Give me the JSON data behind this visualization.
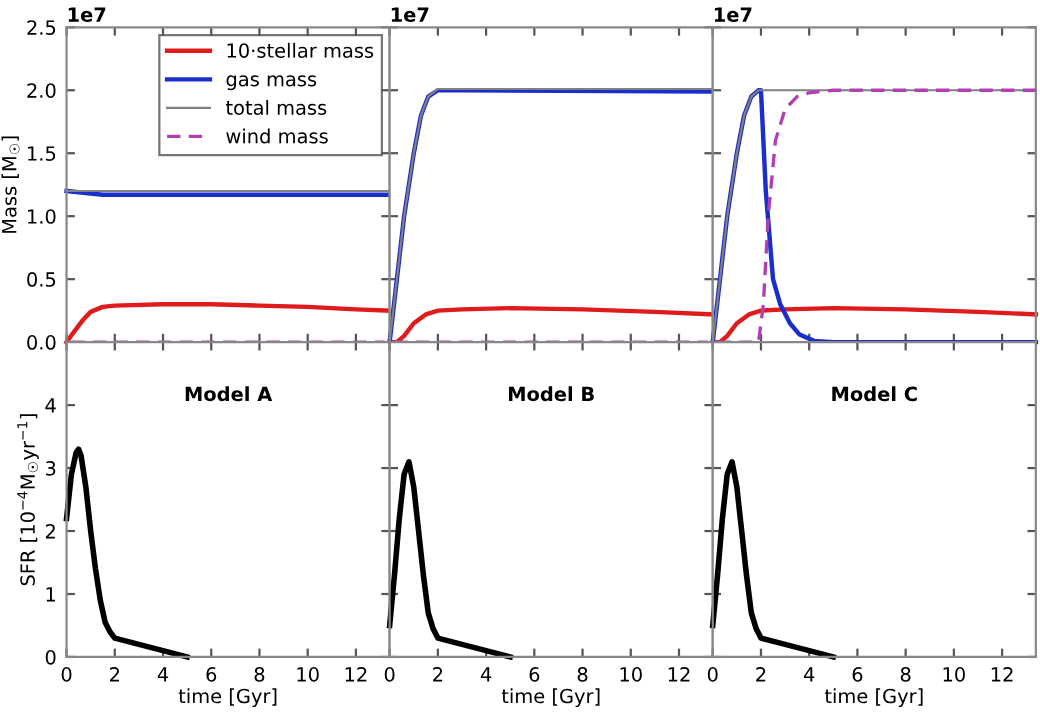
{
  "chart_data": [
    {
      "type": "line",
      "ylabel": "Mass [M$_{☉}$]",
      "annotations": [
        "1e7"
      ],
      "legend": "top right",
      "tick_labels": "y",
      "xlim": [
        0,
        13.4
      ],
      "ylim": [
        0,
        2.5
      ],
      "xticks": [
        0,
        2,
        4,
        6,
        8,
        10,
        12
      ],
      "yticks": [
        {
          "value": 0,
          "label": "0.0"
        },
        {
          "value": 0.5,
          "label": "0.5"
        },
        {
          "value": 1,
          "label": "1.0"
        },
        {
          "value": 1.5,
          "label": "1.5"
        },
        {
          "value": 2,
          "label": "2.0"
        },
        {
          "value": 2.5,
          "label": "2.5"
        }
      ],
      "series": [
        {
          "name": "10·stellar mass",
          "color": "#e01b1b",
          "line_style": "solid",
          "x": [
            0,
            0.3,
            0.7,
            1,
            1.5,
            2,
            4,
            6,
            8,
            10,
            12,
            13.4
          ],
          "values": [
            0,
            0.08,
            0.18,
            0.24,
            0.28,
            0.29,
            0.3,
            0.3,
            0.29,
            0.28,
            0.26,
            0.25
          ]
        },
        {
          "name": "gas mass",
          "color": "#1a2ecc",
          "line_style": "solid",
          "x": [
            0,
            0.5,
            1,
            1.5,
            2,
            13.4
          ],
          "values": [
            1.2,
            1.19,
            1.18,
            1.17,
            1.17,
            1.17
          ]
        },
        {
          "name": "total mass",
          "color": "#808080",
          "line_style": "solid",
          "x": [
            0,
            13.4
          ],
          "values": [
            1.2,
            1.2
          ]
        },
        {
          "name": "wind mass",
          "color": "#b040b0",
          "line_style": "dashed",
          "x": [
            0.2,
            13.2
          ],
          "values": [
            0,
            0
          ]
        }
      ]
    },
    {
      "type": "line",
      "annotations": [
        "1e7"
      ],
      "tick_labels": false,
      "xlim": [
        0,
        13.4
      ],
      "ylim": [
        0,
        2.5
      ],
      "xticks": [
        0,
        2,
        4,
        6,
        8,
        10,
        12
      ],
      "yticks": [
        0,
        0.5,
        1,
        1.5,
        2,
        2.5
      ],
      "series": [
        {
          "color": "#e01b1b",
          "line_style": "solid",
          "x": [
            0,
            0.3,
            0.6,
            1,
            1.5,
            2,
            3,
            5,
            8,
            11,
            13.4
          ],
          "values": [
            0,
            0,
            0.05,
            0.15,
            0.22,
            0.25,
            0.26,
            0.27,
            0.26,
            0.24,
            0.22
          ]
        },
        {
          "color": "#1a2ecc",
          "line_style": "solid",
          "x": [
            0,
            0.3,
            0.6,
            1,
            1.3,
            1.6,
            2,
            3,
            13.4
          ],
          "values": [
            0,
            0.5,
            1.0,
            1.5,
            1.8,
            1.95,
            2.0,
            2.0,
            1.99
          ]
        },
        {
          "color": "#808080",
          "line_style": "solid",
          "x": [
            0,
            0.3,
            0.6,
            1,
            1.3,
            1.6,
            2,
            13.4
          ],
          "values": [
            0,
            0.5,
            1.0,
            1.5,
            1.8,
            1.95,
            2.01,
            2.01
          ]
        },
        {
          "color": "#b040b0",
          "line_style": "dashed",
          "x": [
            0.2,
            13.2
          ],
          "values": [
            0,
            0
          ]
        }
      ]
    },
    {
      "type": "line",
      "annotations": [
        "1e7"
      ],
      "tick_labels": false,
      "xlim": [
        0,
        13.4
      ],
      "ylim": [
        0,
        2.5
      ],
      "xticks": [
        0,
        2,
        4,
        6,
        8,
        10,
        12
      ],
      "yticks": [
        0,
        0.5,
        1,
        1.5,
        2,
        2.5
      ],
      "series": [
        {
          "color": "#e01b1b",
          "line_style": "solid",
          "x": [
            0,
            0.3,
            0.6,
            1,
            1.5,
            2,
            3,
            5,
            8,
            11,
            13.4
          ],
          "values": [
            0,
            0,
            0.05,
            0.15,
            0.22,
            0.25,
            0.26,
            0.27,
            0.26,
            0.24,
            0.22
          ]
        },
        {
          "color": "#1a2ecc",
          "line_style": "solid",
          "x": [
            0,
            0.3,
            0.6,
            1,
            1.3,
            1.6,
            1.9,
            2.0,
            2.2,
            2.5,
            2.8,
            3.2,
            3.6,
            4.2,
            5,
            13.4
          ],
          "values": [
            0,
            0.5,
            1.0,
            1.5,
            1.8,
            1.95,
            2.0,
            2.0,
            1.2,
            0.5,
            0.3,
            0.15,
            0.06,
            0.01,
            0,
            0
          ]
        },
        {
          "color": "#808080",
          "line_style": "solid",
          "x": [
            0,
            0.3,
            0.6,
            1,
            1.3,
            1.6,
            1.9,
            2.0,
            13.4
          ],
          "values": [
            0,
            0.5,
            1.0,
            1.5,
            1.8,
            1.95,
            2.0,
            2.0,
            2.0
          ]
        },
        {
          "color": "#b040b0",
          "line_style": "dashed",
          "x": [
            0.2,
            1.9,
            2.1,
            2.3,
            2.6,
            3,
            3.5,
            4,
            5,
            6,
            8,
            13.4
          ],
          "values": [
            0,
            0,
            0.3,
            1.0,
            1.6,
            1.85,
            1.95,
            1.98,
            2.0,
            2.0,
            2.0,
            2.0
          ]
        }
      ]
    },
    {
      "type": "line",
      "ylabel": "SFR [10$^{−4}$M$_{☉}$yr$^{−1}$]",
      "xlabel": "time [Gyr]",
      "annotations": [
        "Model A"
      ],
      "xlim": [
        0,
        13.4
      ],
      "ylim": [
        0,
        5
      ],
      "xticks": [
        0,
        2,
        4,
        6,
        8,
        10,
        12
      ],
      "yticks": [
        0,
        1,
        2,
        3,
        4
      ],
      "series": [
        {
          "color": "#000000",
          "line_style": "solid",
          "x": [
            0,
            0.2,
            0.4,
            0.5,
            0.6,
            0.8,
            1.0,
            1.2,
            1.4,
            1.6,
            1.8,
            2.0,
            3,
            4,
            5
          ],
          "values": [
            2.2,
            2.9,
            3.25,
            3.3,
            3.2,
            2.7,
            2.0,
            1.4,
            0.9,
            0.55,
            0.4,
            0.3,
            0.2,
            0.1,
            0
          ]
        }
      ]
    },
    {
      "type": "line",
      "xlabel": "time [Gyr]",
      "annotations": [
        "Model B"
      ],
      "tick_labels": "x",
      "xlim": [
        0,
        13.4
      ],
      "ylim": [
        0,
        5
      ],
      "xticks": [
        0,
        2,
        4,
        6,
        8,
        10,
        12
      ],
      "yticks": [
        0,
        1,
        2,
        3,
        4
      ],
      "series": [
        {
          "color": "#000000",
          "line_style": "solid",
          "x": [
            0,
            0.2,
            0.4,
            0.6,
            0.8,
            1.0,
            1.2,
            1.4,
            1.6,
            1.8,
            2.0,
            3,
            4,
            5
          ],
          "values": [
            0.5,
            1.3,
            2.2,
            2.9,
            3.1,
            2.7,
            2.0,
            1.3,
            0.7,
            0.45,
            0.3,
            0.2,
            0.1,
            0
          ]
        }
      ]
    },
    {
      "type": "line",
      "xlabel": "time [Gyr]",
      "annotations": [
        "Model C"
      ],
      "tick_labels": "x",
      "xlim": [
        0,
        13.4
      ],
      "ylim": [
        0,
        5
      ],
      "xticks": [
        0,
        2,
        4,
        6,
        8,
        10,
        12
      ],
      "yticks": [
        0,
        1,
        2,
        3,
        4
      ],
      "series": [
        {
          "color": "#000000",
          "line_style": "solid",
          "x": [
            0,
            0.2,
            0.4,
            0.6,
            0.8,
            1.0,
            1.2,
            1.4,
            1.6,
            1.8,
            2.0,
            3,
            4,
            5
          ],
          "values": [
            0.5,
            1.3,
            2.2,
            2.9,
            3.1,
            2.7,
            2.0,
            1.3,
            0.7,
            0.45,
            0.3,
            0.2,
            0.1,
            0
          ]
        }
      ]
    }
  ]
}
